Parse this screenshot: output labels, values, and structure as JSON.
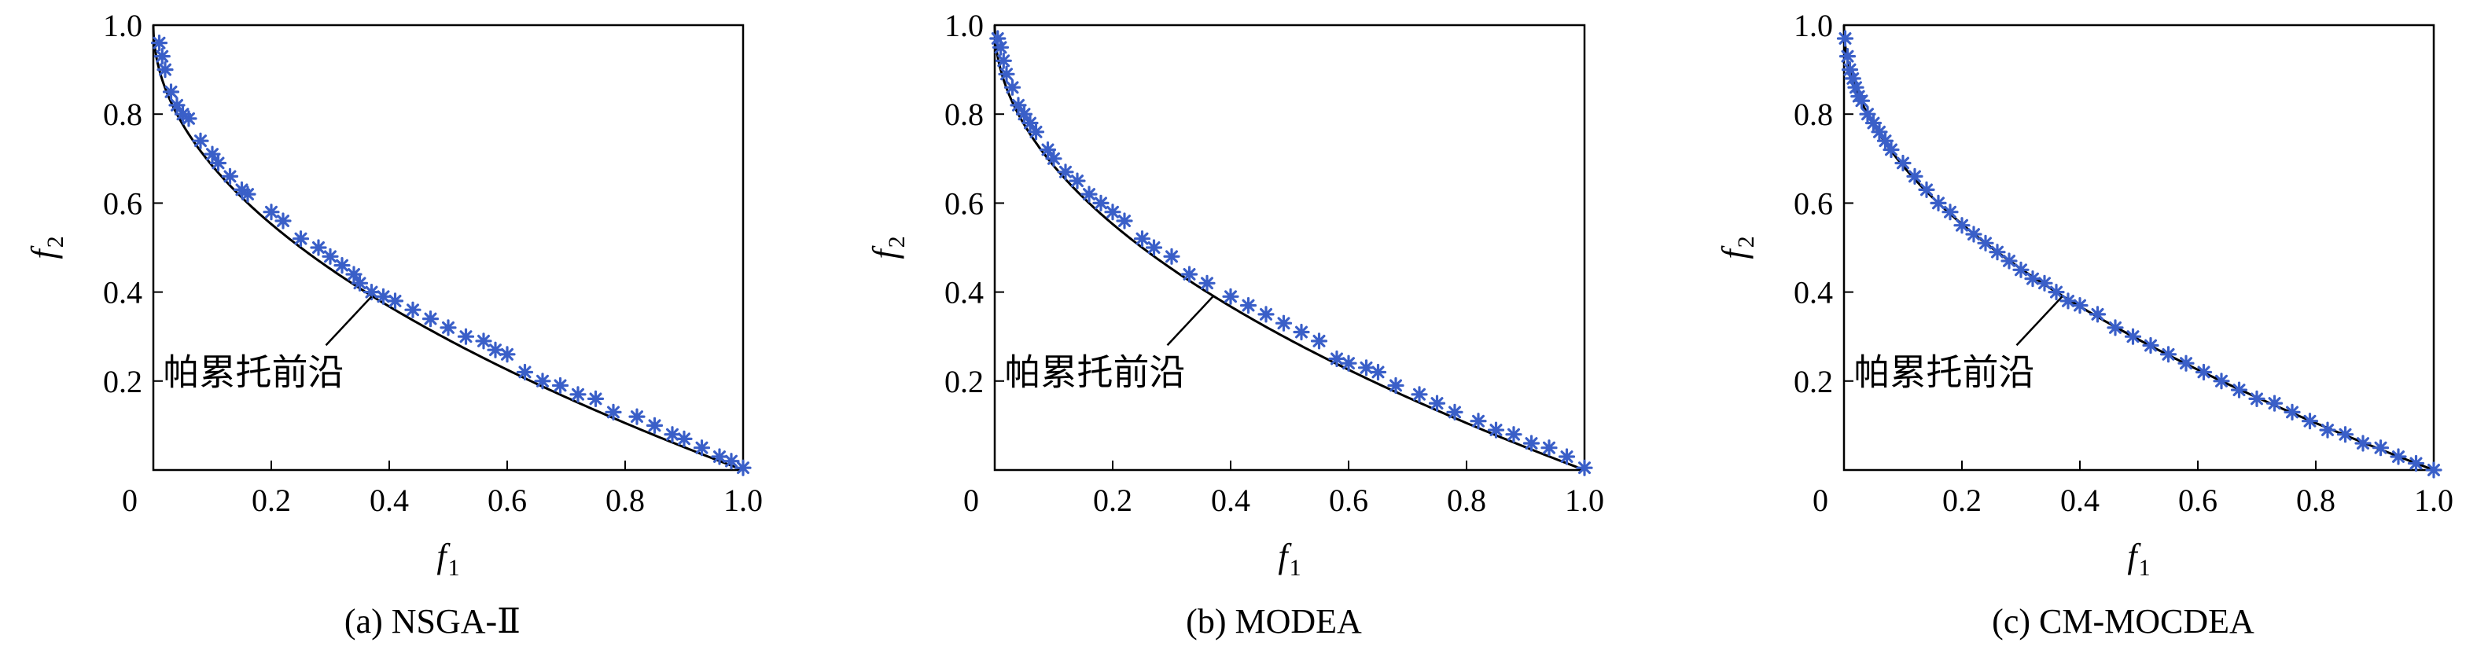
{
  "chart_data": [
    {
      "type": "scatter",
      "caption": "(a) NSGA-Ⅱ",
      "xlabel": "f",
      "xlabel_sub": "1",
      "ylabel": "f",
      "ylabel_sub": "2",
      "xlim": [
        0,
        1.0
      ],
      "ylim": [
        0,
        1.0
      ],
      "xticks": [
        "0.2",
        "0.4",
        "0.6",
        "0.8",
        "1.0"
      ],
      "yticks": [
        "0.2",
        "0.4",
        "0.6",
        "0.8",
        "1.0"
      ],
      "origin_label": "0",
      "grid": false,
      "annotation": {
        "text": "帕累托前沿",
        "x": 0.37,
        "y": 0.39
      },
      "marker_color": "#3a5fc8",
      "front": {
        "name": "帕累托前沿",
        "form": "1 - sqrt(x)",
        "color": "#000000"
      },
      "points": [
        [
          0.01,
          0.96
        ],
        [
          0.015,
          0.93
        ],
        [
          0.02,
          0.9
        ],
        [
          0.03,
          0.85
        ],
        [
          0.04,
          0.82
        ],
        [
          0.05,
          0.8
        ],
        [
          0.06,
          0.79
        ],
        [
          0.08,
          0.74
        ],
        [
          0.1,
          0.71
        ],
        [
          0.11,
          0.69
        ],
        [
          0.13,
          0.66
        ],
        [
          0.15,
          0.63
        ],
        [
          0.16,
          0.62
        ],
        [
          0.2,
          0.58
        ],
        [
          0.22,
          0.56
        ],
        [
          0.25,
          0.52
        ],
        [
          0.28,
          0.5
        ],
        [
          0.3,
          0.48
        ],
        [
          0.32,
          0.46
        ],
        [
          0.34,
          0.44
        ],
        [
          0.35,
          0.42
        ],
        [
          0.37,
          0.4
        ],
        [
          0.39,
          0.39
        ],
        [
          0.41,
          0.38
        ],
        [
          0.44,
          0.36
        ],
        [
          0.47,
          0.34
        ],
        [
          0.5,
          0.32
        ],
        [
          0.53,
          0.3
        ],
        [
          0.56,
          0.29
        ],
        [
          0.58,
          0.27
        ],
        [
          0.6,
          0.26
        ],
        [
          0.63,
          0.22
        ],
        [
          0.66,
          0.2
        ],
        [
          0.69,
          0.19
        ],
        [
          0.72,
          0.17
        ],
        [
          0.75,
          0.16
        ],
        [
          0.78,
          0.13
        ],
        [
          0.82,
          0.12
        ],
        [
          0.85,
          0.1
        ],
        [
          0.88,
          0.08
        ],
        [
          0.9,
          0.07
        ],
        [
          0.93,
          0.05
        ],
        [
          0.96,
          0.03
        ],
        [
          0.98,
          0.02
        ],
        [
          1.0,
          0.005
        ]
      ]
    },
    {
      "type": "scatter",
      "caption": "(b) MODEA",
      "xlabel": "f",
      "xlabel_sub": "1",
      "ylabel": "f",
      "ylabel_sub": "2",
      "xlim": [
        0,
        1.0
      ],
      "ylim": [
        0,
        1.0
      ],
      "xticks": [
        "0.2",
        "0.4",
        "0.6",
        "0.8",
        "1.0"
      ],
      "yticks": [
        "0.2",
        "0.4",
        "0.6",
        "0.8",
        "1.0"
      ],
      "origin_label": "0",
      "grid": false,
      "annotation": {
        "text": "帕累托前沿",
        "x": 0.37,
        "y": 0.39
      },
      "marker_color": "#3a5fc8",
      "front": {
        "name": "帕累托前沿",
        "form": "1 - sqrt(x)",
        "color": "#000000"
      },
      "points": [
        [
          0.005,
          0.97
        ],
        [
          0.01,
          0.95
        ],
        [
          0.015,
          0.92
        ],
        [
          0.02,
          0.89
        ],
        [
          0.03,
          0.86
        ],
        [
          0.04,
          0.82
        ],
        [
          0.05,
          0.8
        ],
        [
          0.06,
          0.78
        ],
        [
          0.07,
          0.76
        ],
        [
          0.09,
          0.72
        ],
        [
          0.1,
          0.7
        ],
        [
          0.12,
          0.67
        ],
        [
          0.14,
          0.65
        ],
        [
          0.16,
          0.62
        ],
        [
          0.18,
          0.6
        ],
        [
          0.2,
          0.58
        ],
        [
          0.22,
          0.56
        ],
        [
          0.25,
          0.52
        ],
        [
          0.27,
          0.5
        ],
        [
          0.3,
          0.48
        ],
        [
          0.33,
          0.44
        ],
        [
          0.36,
          0.42
        ],
        [
          0.4,
          0.39
        ],
        [
          0.43,
          0.37
        ],
        [
          0.46,
          0.35
        ],
        [
          0.49,
          0.33
        ],
        [
          0.52,
          0.31
        ],
        [
          0.55,
          0.29
        ],
        [
          0.58,
          0.25
        ],
        [
          0.6,
          0.24
        ],
        [
          0.63,
          0.23
        ],
        [
          0.65,
          0.22
        ],
        [
          0.68,
          0.19
        ],
        [
          0.72,
          0.17
        ],
        [
          0.75,
          0.15
        ],
        [
          0.78,
          0.13
        ],
        [
          0.82,
          0.11
        ],
        [
          0.85,
          0.09
        ],
        [
          0.88,
          0.08
        ],
        [
          0.91,
          0.06
        ],
        [
          0.94,
          0.05
        ],
        [
          0.97,
          0.03
        ],
        [
          1.0,
          0.005
        ]
      ]
    },
    {
      "type": "scatter",
      "caption": "(c) CM-MOCDEA",
      "xlabel": "f",
      "xlabel_sub": "1",
      "ylabel": "f",
      "ylabel_sub": "2",
      "xlim": [
        0,
        1.0
      ],
      "ylim": [
        0,
        1.0
      ],
      "xticks": [
        "0.2",
        "0.4",
        "0.6",
        "0.8",
        "1.0"
      ],
      "yticks": [
        "0.2",
        "0.4",
        "0.6",
        "0.8",
        "1.0"
      ],
      "origin_label": "0",
      "grid": false,
      "annotation": {
        "text": "帕累托前沿",
        "x": 0.37,
        "y": 0.39
      },
      "marker_color": "#3a5fc8",
      "front": {
        "name": "帕累托前沿",
        "form": "1 - sqrt(x)",
        "color": "#000000"
      },
      "points": [
        [
          0.002,
          0.97
        ],
        [
          0.006,
          0.93
        ],
        [
          0.01,
          0.9
        ],
        [
          0.015,
          0.88
        ],
        [
          0.02,
          0.86
        ],
        [
          0.025,
          0.84
        ],
        [
          0.03,
          0.83
        ],
        [
          0.04,
          0.8
        ],
        [
          0.05,
          0.78
        ],
        [
          0.06,
          0.76
        ],
        [
          0.07,
          0.74
        ],
        [
          0.08,
          0.72
        ],
        [
          0.1,
          0.69
        ],
        [
          0.12,
          0.66
        ],
        [
          0.14,
          0.63
        ],
        [
          0.16,
          0.6
        ],
        [
          0.18,
          0.58
        ],
        [
          0.2,
          0.55
        ],
        [
          0.22,
          0.53
        ],
        [
          0.24,
          0.51
        ],
        [
          0.26,
          0.49
        ],
        [
          0.28,
          0.47
        ],
        [
          0.3,
          0.45
        ],
        [
          0.32,
          0.43
        ],
        [
          0.34,
          0.42
        ],
        [
          0.36,
          0.4
        ],
        [
          0.38,
          0.38
        ],
        [
          0.4,
          0.37
        ],
        [
          0.43,
          0.35
        ],
        [
          0.46,
          0.32
        ],
        [
          0.49,
          0.3
        ],
        [
          0.52,
          0.28
        ],
        [
          0.55,
          0.26
        ],
        [
          0.58,
          0.24
        ],
        [
          0.61,
          0.22
        ],
        [
          0.64,
          0.2
        ],
        [
          0.67,
          0.18
        ],
        [
          0.7,
          0.16
        ],
        [
          0.73,
          0.15
        ],
        [
          0.76,
          0.13
        ],
        [
          0.79,
          0.11
        ],
        [
          0.82,
          0.09
        ],
        [
          0.85,
          0.08
        ],
        [
          0.88,
          0.06
        ],
        [
          0.91,
          0.05
        ],
        [
          0.94,
          0.03
        ],
        [
          0.97,
          0.015
        ],
        [
          1.0,
          0.0
        ]
      ]
    }
  ]
}
